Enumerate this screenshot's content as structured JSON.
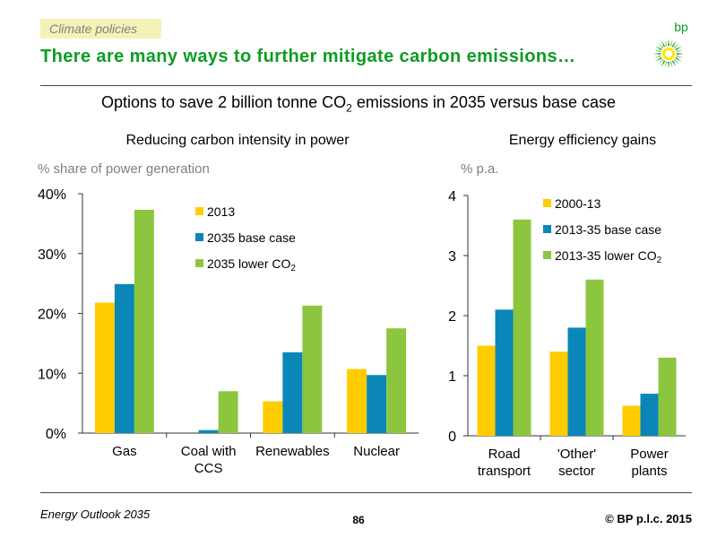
{
  "header": {
    "tag": "Climate policies",
    "headline": "There are many ways to further mitigate carbon emissions…",
    "logo_text": "bp"
  },
  "subtitle": {
    "prefix": "Options to save 2 billion tonne CO",
    "sub": "2",
    "suffix": " emissions in 2035 versus base case"
  },
  "colors": {
    "yellow": "#ffcc00",
    "blue": "#0a87b8",
    "green": "#8cc63f",
    "headline": "#0f9b23"
  },
  "footer": {
    "left": "Energy Outlook 2035",
    "page": "86",
    "right": "© BP p.l.c. 2015"
  },
  "chart_data": [
    {
      "type": "bar",
      "title": "Reducing carbon intensity in power",
      "unit_label": "% share of power generation",
      "categories": [
        [
          "Gas"
        ],
        [
          "Coal with",
          "CCS"
        ],
        [
          "Renewables"
        ],
        [
          "Nuclear"
        ]
      ],
      "yticks": [
        "0%",
        "10%",
        "20%",
        "30%",
        "40%"
      ],
      "ylim": [
        0,
        40
      ],
      "series": [
        {
          "name": "2013",
          "color": "yellow",
          "values": [
            21.8,
            0,
            5.3,
            10.7
          ]
        },
        {
          "name": "2035 base case",
          "color": "blue",
          "values": [
            24.9,
            0.5,
            13.5,
            9.7
          ]
        },
        {
          "name": "2035 lower CO",
          "name_sub": "2",
          "color": "green",
          "values": [
            37.3,
            7.0,
            21.3,
            17.5
          ]
        }
      ],
      "legend": "top-right"
    },
    {
      "type": "bar",
      "title": "Energy efficiency gains",
      "unit_label": "% p.a.",
      "categories": [
        [
          "Road",
          "transport"
        ],
        [
          "'Other'",
          "sector"
        ],
        [
          "Power",
          "plants"
        ]
      ],
      "yticks": [
        "0",
        "1",
        "2",
        "3",
        "4"
      ],
      "ylim": [
        0,
        4
      ],
      "series": [
        {
          "name": "2000-13",
          "color": "yellow",
          "values": [
            1.5,
            1.4,
            0.5
          ]
        },
        {
          "name": "2013-35 base case",
          "color": "blue",
          "values": [
            2.1,
            1.8,
            0.7
          ]
        },
        {
          "name": "2013-35 lower CO",
          "name_sub": "2",
          "color": "green",
          "values": [
            3.6,
            2.6,
            1.3
          ]
        }
      ],
      "legend": "top-right"
    }
  ]
}
